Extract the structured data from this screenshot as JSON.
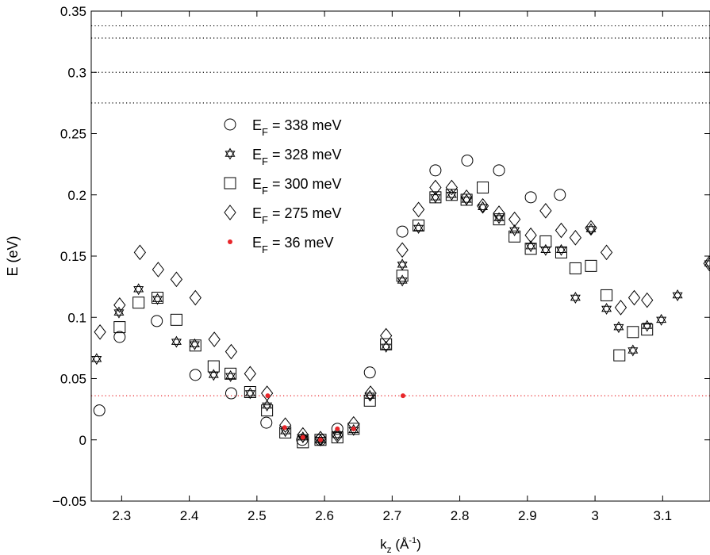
{
  "chart_data": {
    "type": "scatter",
    "xlabel": {
      "main": "k",
      "sub": "z",
      "paren": " (Å",
      "sup": "-1",
      "close": ")"
    },
    "ylabel": "E (eV)",
    "xlim": [
      2.255,
      3.17
    ],
    "ylim": [
      -0.05,
      0.35
    ],
    "xticks": [
      2.3,
      2.4,
      2.5,
      2.6,
      2.7,
      2.8,
      2.9,
      3,
      3.1
    ],
    "xtick_labels": [
      "2.3",
      "2.4",
      "2.5",
      "2.6",
      "2.7",
      "2.8",
      "2.9",
      "3",
      "3.1"
    ],
    "yticks": [
      -0.05,
      0,
      0.05,
      0.1,
      0.15,
      0.2,
      0.25,
      0.3,
      0.35
    ],
    "ytick_labels": [
      "−0.05",
      "0",
      "0.05",
      "0.1",
      "0.15",
      "0.2",
      "0.25",
      "0.3",
      "0.35"
    ],
    "grid": false,
    "legend_placement": "upper-left inside",
    "hlines": [
      {
        "y": 0.338,
        "color": "#000000"
      },
      {
        "y": 0.328,
        "color": "#000000"
      },
      {
        "y": 0.3,
        "color": "#000000"
      },
      {
        "y": 0.275,
        "color": "#000000"
      },
      {
        "y": 0.036,
        "color": "#e8262a"
      }
    ],
    "series": [
      {
        "name": {
          "pre": "E",
          "sub": "F",
          "post": " = 338 meV"
        },
        "marker": "circle",
        "color": "#000000",
        "points": [
          [
            2.267,
            0.024
          ],
          [
            2.297,
            0.084
          ],
          [
            2.352,
            0.097
          ],
          [
            2.409,
            0.053
          ],
          [
            2.462,
            0.038
          ],
          [
            2.514,
            0.014
          ],
          [
            2.567,
            0.0
          ],
          [
            2.594,
            0.0
          ],
          [
            2.619,
            0.009
          ],
          [
            2.667,
            0.055
          ],
          [
            2.715,
            0.17
          ],
          [
            2.764,
            0.22
          ],
          [
            2.811,
            0.228
          ],
          [
            2.858,
            0.22
          ],
          [
            2.905,
            0.198
          ],
          [
            2.948,
            0.2
          ]
        ]
      },
      {
        "name": {
          "pre": "E",
          "sub": "F",
          "post": " = 328 meV"
        },
        "marker": "star",
        "color": "#000000",
        "points": [
          [
            2.263,
            0.066
          ],
          [
            2.296,
            0.104
          ],
          [
            2.325,
            0.123
          ],
          [
            2.353,
            0.115
          ],
          [
            2.381,
            0.08
          ],
          [
            2.408,
            0.078
          ],
          [
            2.436,
            0.053
          ],
          [
            2.461,
            0.052
          ],
          [
            2.49,
            0.038
          ],
          [
            2.515,
            0.028
          ],
          [
            2.542,
            0.007
          ],
          [
            2.568,
            0.002
          ],
          [
            2.594,
            0.0
          ],
          [
            2.619,
            0.004
          ],
          [
            2.643,
            0.008
          ],
          [
            2.667,
            0.036
          ],
          [
            2.691,
            0.076
          ],
          [
            2.715,
            0.143
          ],
          [
            2.715,
            0.13
          ],
          [
            2.739,
            0.173
          ],
          [
            2.764,
            0.198
          ],
          [
            2.788,
            0.2
          ],
          [
            2.81,
            0.196
          ],
          [
            2.834,
            0.19
          ],
          [
            2.858,
            0.181
          ],
          [
            2.881,
            0.171
          ],
          [
            2.905,
            0.158
          ],
          [
            2.927,
            0.155
          ],
          [
            2.95,
            0.155
          ],
          [
            2.971,
            0.116
          ],
          [
            2.994,
            0.172
          ],
          [
            3.017,
            0.107
          ],
          [
            3.035,
            0.092
          ],
          [
            3.056,
            0.073
          ],
          [
            3.077,
            0.093
          ],
          [
            3.098,
            0.098
          ],
          [
            3.122,
            0.118
          ],
          [
            3.169,
            0.144
          ]
        ]
      },
      {
        "name": {
          "pre": "E",
          "sub": "F",
          "post": " = 300 meV"
        },
        "marker": "square",
        "color": "#000000",
        "points": [
          [
            2.297,
            0.092
          ],
          [
            2.325,
            0.112
          ],
          [
            2.353,
            0.116
          ],
          [
            2.381,
            0.098
          ],
          [
            2.409,
            0.077
          ],
          [
            2.436,
            0.06
          ],
          [
            2.461,
            0.054
          ],
          [
            2.49,
            0.039
          ],
          [
            2.515,
            0.024
          ],
          [
            2.542,
            0.006
          ],
          [
            2.568,
            -0.002
          ],
          [
            2.594,
            0.0
          ],
          [
            2.619,
            0.002
          ],
          [
            2.643,
            0.009
          ],
          [
            2.667,
            0.032
          ],
          [
            2.691,
            0.078
          ],
          [
            2.715,
            0.134
          ],
          [
            2.739,
            0.175
          ],
          [
            2.764,
            0.198
          ],
          [
            2.788,
            0.2
          ],
          [
            2.81,
            0.196
          ],
          [
            2.834,
            0.206
          ],
          [
            2.858,
            0.18
          ],
          [
            2.881,
            0.166
          ],
          [
            2.905,
            0.156
          ],
          [
            2.927,
            0.162
          ],
          [
            2.95,
            0.153
          ],
          [
            2.971,
            0.14
          ],
          [
            2.994,
            0.142
          ],
          [
            3.017,
            0.118
          ],
          [
            3.036,
            0.069
          ],
          [
            3.056,
            0.088
          ],
          [
            3.077,
            0.09
          ]
        ]
      },
      {
        "name": {
          "pre": "E",
          "sub": "F",
          "post": " = 275 meV"
        },
        "marker": "diamond",
        "color": "#000000",
        "points": [
          [
            2.268,
            0.088
          ],
          [
            2.297,
            0.11
          ],
          [
            2.327,
            0.153
          ],
          [
            2.354,
            0.139
          ],
          [
            2.381,
            0.131
          ],
          [
            2.409,
            0.116
          ],
          [
            2.437,
            0.082
          ],
          [
            2.462,
            0.072
          ],
          [
            2.49,
            0.054
          ],
          [
            2.515,
            0.038
          ],
          [
            2.542,
            0.012
          ],
          [
            2.568,
            0.004
          ],
          [
            2.594,
            0.001
          ],
          [
            2.619,
            0.004
          ],
          [
            2.643,
            0.013
          ],
          [
            2.668,
            0.038
          ],
          [
            2.691,
            0.085
          ],
          [
            2.715,
            0.155
          ],
          [
            2.739,
            0.188
          ],
          [
            2.764,
            0.206
          ],
          [
            2.788,
            0.206
          ],
          [
            2.81,
            0.198
          ],
          [
            2.834,
            0.191
          ],
          [
            2.858,
            0.185
          ],
          [
            2.881,
            0.18
          ],
          [
            2.905,
            0.167
          ],
          [
            2.927,
            0.187
          ],
          [
            2.95,
            0.171
          ],
          [
            2.971,
            0.165
          ],
          [
            2.994,
            0.173
          ],
          [
            3.017,
            0.153
          ],
          [
            3.038,
            0.108
          ],
          [
            3.058,
            0.116
          ],
          [
            3.077,
            0.114
          ],
          [
            3.169,
            0.144
          ]
        ]
      },
      {
        "name": {
          "pre": "E",
          "sub": "F",
          "post": " = 36 meV"
        },
        "marker": "dot",
        "color": "#e8262a",
        "points": [
          [
            2.516,
            0.036
          ],
          [
            2.541,
            0.01
          ],
          [
            2.568,
            0.002
          ],
          [
            2.594,
            0.0
          ],
          [
            2.619,
            0.009
          ],
          [
            2.643,
            0.009
          ],
          [
            2.716,
            0.036
          ]
        ]
      }
    ]
  }
}
